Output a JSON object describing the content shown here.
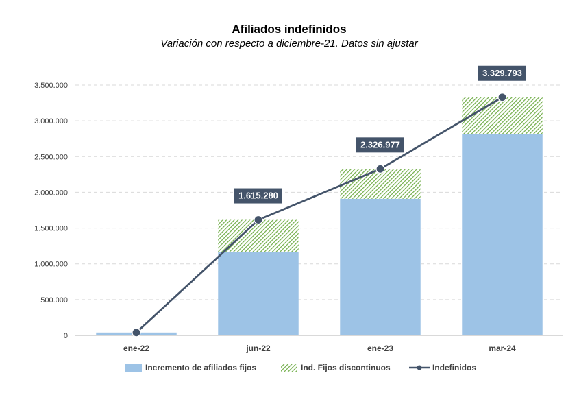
{
  "chart_data": {
    "type": "bar",
    "title": "Afiliados indefinidos",
    "subtitle": "Variación con respecto a diciembre-21. Datos sin ajustar",
    "categories": [
      "ene-22",
      "jun-22",
      "ene-23",
      "mar-24"
    ],
    "series": [
      {
        "name": "Incremento de afiliados fijos",
        "kind": "stacked-bar",
        "color": "#9dc3e6",
        "values": [
          40000,
          1165000,
          1910000,
          2810000
        ]
      },
      {
        "name": "Ind. Fijos discontinuos",
        "kind": "stacked-bar-hatched",
        "color": "#70ad47",
        "values": [
          0,
          450280,
          416977,
          519793
        ]
      },
      {
        "name": "Indefinidos",
        "kind": "line",
        "color": "#44546a",
        "values": [
          40000,
          1615280,
          2326977,
          3329793
        ]
      }
    ],
    "data_labels": [
      "",
      "1.615.280",
      "2.326.977",
      "3.329.793"
    ],
    "yticks": [
      "0",
      "500.000",
      "1.000.000",
      "1.500.000",
      "2.000.000",
      "2.500.000",
      "3.000.000",
      "3.500.000"
    ],
    "ylim": [
      0,
      3500000
    ],
    "grid": true,
    "legend_position": "bottom",
    "xlabel": "",
    "ylabel": ""
  }
}
